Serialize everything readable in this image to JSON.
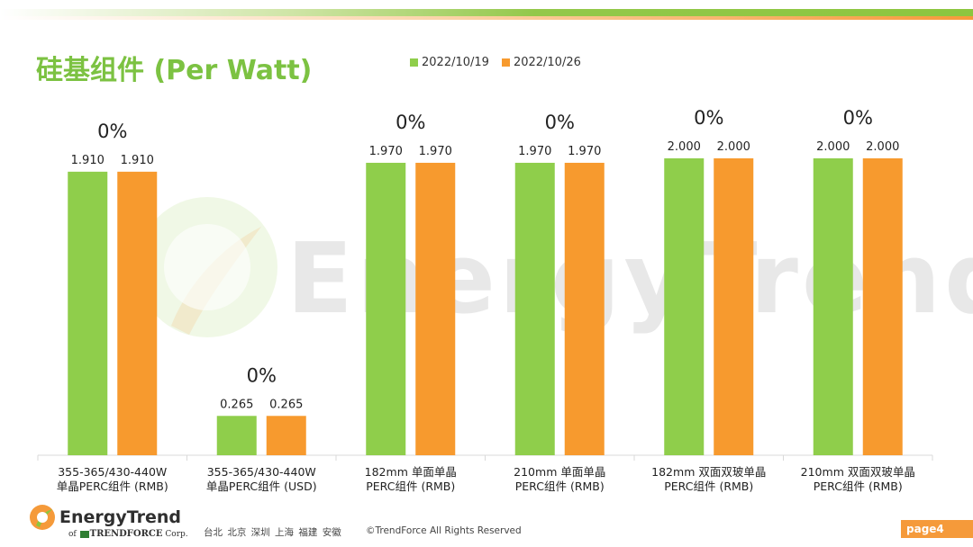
{
  "title": "硅基组件 (Per Watt)",
  "legend": [
    {
      "label": "2022/10/19",
      "color": "#8fce4b"
    },
    {
      "label": "2022/10/26",
      "color": "#f79a2e"
    }
  ],
  "watermark": "EnergyTrend",
  "chart_data": {
    "type": "bar",
    "title": "硅基组件 (Per Watt)",
    "categories": [
      [
        "355-365/430-440W",
        "单晶PERC组件 (RMB)"
      ],
      [
        "355-365/430-440W",
        "单晶PERC组件 (USD)"
      ],
      [
        "182mm 单面单晶",
        "PERC组件 (RMB)"
      ],
      [
        "210mm 单面单晶",
        "PERC组件 (RMB)"
      ],
      [
        "182mm 双面双玻单晶",
        "PERC组件 (RMB)"
      ],
      [
        "210mm 双面双玻单晶",
        "PERC组件 (RMB)"
      ]
    ],
    "series": [
      {
        "name": "2022/10/19",
        "color": "#8fce4b",
        "values": [
          1.91,
          0.265,
          1.97,
          1.97,
          2.0,
          2.0
        ],
        "labels": [
          "1.910",
          "0.265",
          "1.970",
          "1.970",
          "2.000",
          "2.000"
        ]
      },
      {
        "name": "2022/10/26",
        "color": "#f79a2e",
        "values": [
          1.91,
          0.265,
          1.97,
          1.97,
          2.0,
          2.0
        ],
        "labels": [
          "1.910",
          "0.265",
          "1.970",
          "1.970",
          "2.000",
          "2.000"
        ]
      }
    ],
    "change_labels": [
      "0%",
      "0%",
      "0%",
      "0%",
      "0%",
      "0%"
    ],
    "grid": false,
    "legend_position": "top"
  },
  "footer": {
    "brand": "EnergyTrend",
    "sub_prefix": "of",
    "sub_brand": "TRENDFORCE",
    "sub_suffix": "Corp.",
    "cities": "台北 北京 深圳 上海 福建 安徽",
    "copyright": "©TrendForce All Rights Reserved",
    "page": "page4"
  }
}
